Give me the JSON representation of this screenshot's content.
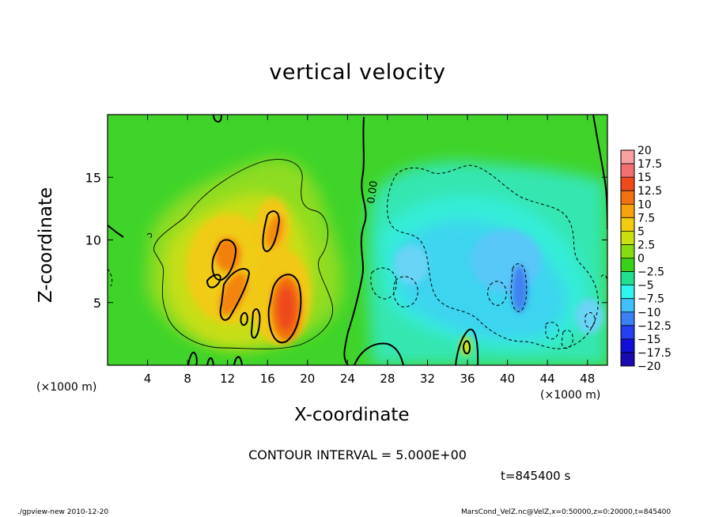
{
  "title": "vertical velocity",
  "contour_interval": "CONTOUR INTERVAL = 5.000E+00",
  "time_label": "t=845400 s",
  "footer": {
    "left": "./gpview-new  2010-12-20",
    "right": "MarsCond_VelZ.nc@VelZ,x=0:50000,z=0:20000,t=845400"
  },
  "chart_data": {
    "type": "contour",
    "title": "vertical velocity",
    "xlabel": "X-coordinate",
    "ylabel": "Z-coordinate",
    "x_unit": "(×1000 m)",
    "y_unit": "(×1000 m)",
    "xlim": [
      0,
      50
    ],
    "ylim": [
      0,
      20
    ],
    "x_ticks": [
      4,
      8,
      12,
      16,
      20,
      24,
      28,
      32,
      36,
      40,
      44,
      48
    ],
    "y_ticks": [
      5,
      10,
      15
    ],
    "contour_label": "0.00",
    "colorbar": {
      "levels": [
        "20",
        "17.5",
        "15",
        "12.5",
        "10",
        "7.5",
        "5",
        "2.5",
        "0",
        "-2.5",
        "-5",
        "-7.5",
        "-10",
        "-12.5",
        "-15",
        "-17.5",
        "-20"
      ],
      "colors": [
        "#f8a0a0",
        "#f07070",
        "#ee4a1c",
        "#f27010",
        "#f6a20c",
        "#f2cc10",
        "#c8e010",
        "#86dc10",
        "#38d018",
        "#20e090",
        "#30f4f0",
        "#40c0f8",
        "#3c80f4",
        "#2440f0",
        "#1010d8",
        "#1a0ab0",
        "#7010b0"
      ]
    },
    "features": [
      {
        "kind": "updraft",
        "x": 11.8,
        "z": 8.5,
        "peak": 12
      },
      {
        "kind": "updraft",
        "x": 11.5,
        "z": 5.5,
        "peak": 10
      },
      {
        "kind": "updraft",
        "x": 16.2,
        "z": 11,
        "peak": 9
      },
      {
        "kind": "updraft",
        "x": 18,
        "z": 4.7,
        "peak": 14
      },
      {
        "kind": "downdraft",
        "x": 40.8,
        "z": 6,
        "peak": -9
      },
      {
        "kind": "downdraft",
        "x": 36,
        "z": 10,
        "peak": -5
      }
    ]
  }
}
